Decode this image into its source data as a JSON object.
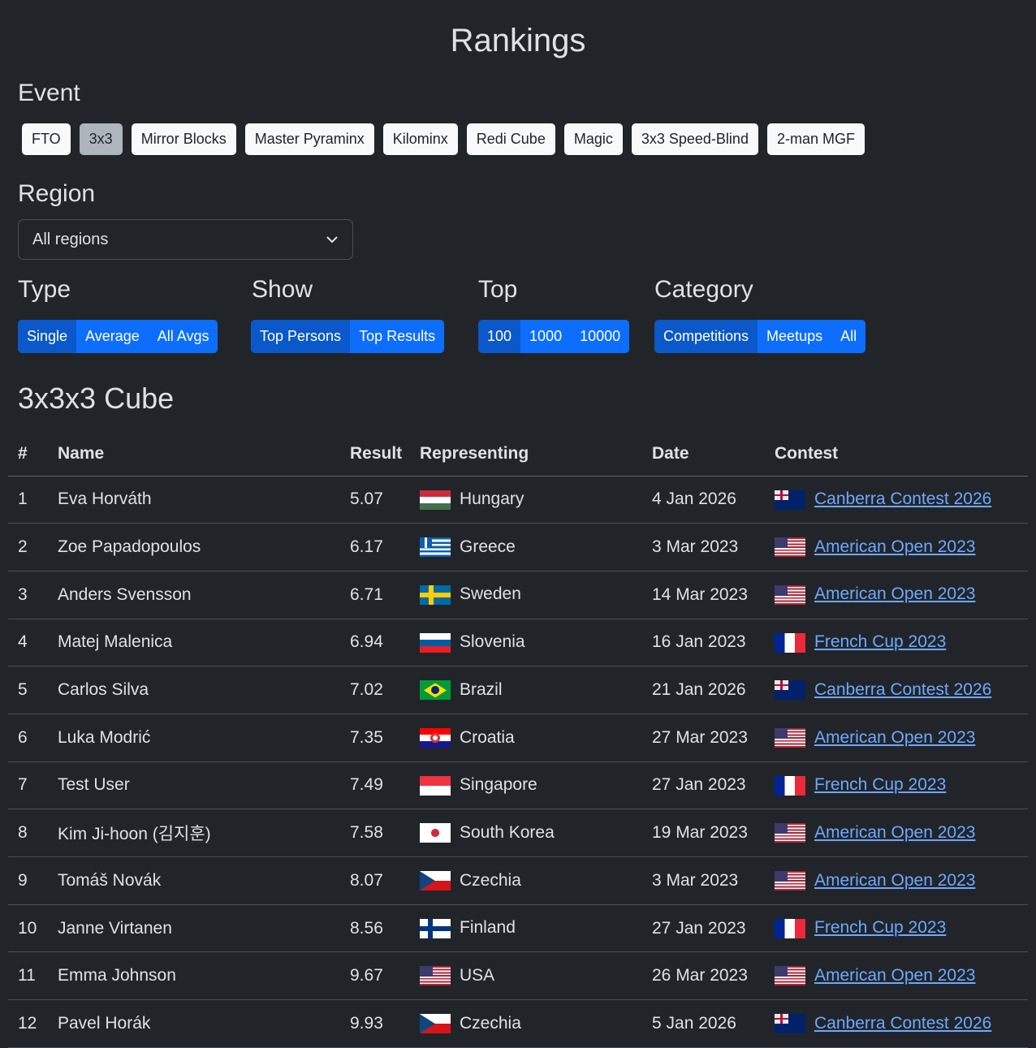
{
  "title": "Rankings",
  "event": {
    "label": "Event",
    "items": [
      "FTO",
      "3x3",
      "Mirror Blocks",
      "Master Pyraminx",
      "Kilominx",
      "Redi Cube",
      "Magic",
      "3x3 Speed-Blind",
      "2-man MGF"
    ],
    "active": "3x3"
  },
  "region": {
    "label": "Region",
    "value": "All regions"
  },
  "type": {
    "label": "Type",
    "items": [
      "Single",
      "Average",
      "All Avgs"
    ],
    "active": "Single"
  },
  "show": {
    "label": "Show",
    "items": [
      "Top Persons",
      "Top Results"
    ],
    "active": "Top Persons"
  },
  "top": {
    "label": "Top",
    "items": [
      "100",
      "1000",
      "10000"
    ],
    "active": "100"
  },
  "category": {
    "label": "Category",
    "items": [
      "Competitions",
      "Meetups",
      "All"
    ],
    "active": "Competitions"
  },
  "subtitle": "3x3x3 Cube",
  "columns": [
    "#",
    "Name",
    "Result",
    "Representing",
    "Date",
    "Contest"
  ],
  "rows": [
    {
      "rank": "1",
      "name": "Eva Horváth",
      "result": "5.07",
      "flag": "hu",
      "country": "Hungary",
      "date": "4 Jan 2026",
      "cflag": "au",
      "contest": "Canberra Contest 2026"
    },
    {
      "rank": "2",
      "name": "Zoe Papadopoulos",
      "result": "6.17",
      "flag": "gr",
      "country": "Greece",
      "date": "3 Mar 2023",
      "cflag": "us",
      "contest": "American Open 2023"
    },
    {
      "rank": "3",
      "name": "Anders Svensson",
      "result": "6.71",
      "flag": "se",
      "country": "Sweden",
      "date": "14 Mar 2023",
      "cflag": "us",
      "contest": "American Open 2023"
    },
    {
      "rank": "4",
      "name": "Matej Malenica",
      "result": "6.94",
      "flag": "si",
      "country": "Slovenia",
      "date": "16 Jan 2023",
      "cflag": "fr",
      "contest": "French Cup 2023"
    },
    {
      "rank": "5",
      "name": "Carlos Silva",
      "result": "7.02",
      "flag": "br",
      "country": "Brazil",
      "date": "21 Jan 2026",
      "cflag": "au",
      "contest": "Canberra Contest 2026"
    },
    {
      "rank": "6",
      "name": "Luka Modrić",
      "result": "7.35",
      "flag": "hr",
      "country": "Croatia",
      "date": "27 Mar 2023",
      "cflag": "us",
      "contest": "American Open 2023"
    },
    {
      "rank": "7",
      "name": "Test User",
      "result": "7.49",
      "flag": "sg",
      "country": "Singapore",
      "date": "27 Jan 2023",
      "cflag": "fr",
      "contest": "French Cup 2023"
    },
    {
      "rank": "8",
      "name": "Kim Ji-hoon (김지훈)",
      "result": "7.58",
      "flag": "kr",
      "country": "South Korea",
      "date": "19 Mar 2023",
      "cflag": "us",
      "contest": "American Open 2023"
    },
    {
      "rank": "9",
      "name": "Tomáš Novák",
      "result": "8.07",
      "flag": "cz",
      "country": "Czechia",
      "date": "3 Mar 2023",
      "cflag": "us",
      "contest": "American Open 2023"
    },
    {
      "rank": "10",
      "name": "Janne Virtanen",
      "result": "8.56",
      "flag": "fi",
      "country": "Finland",
      "date": "27 Jan 2023",
      "cflag": "fr",
      "contest": "French Cup 2023"
    },
    {
      "rank": "11",
      "name": "Emma Johnson",
      "result": "9.67",
      "flag": "us",
      "country": "USA",
      "date": "26 Mar 2023",
      "cflag": "us",
      "contest": "American Open 2023"
    },
    {
      "rank": "12",
      "name": "Pavel Horák",
      "result": "9.93",
      "flag": "cz",
      "country": "Czechia",
      "date": "5 Jan 2026",
      "cflag": "au",
      "contest": "Canberra Contest 2026"
    }
  ]
}
